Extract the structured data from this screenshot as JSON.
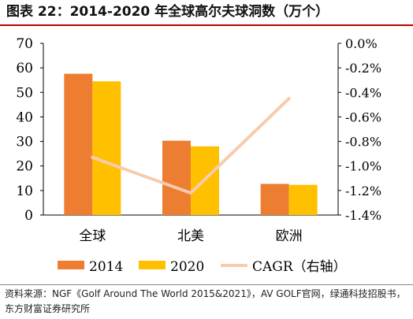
{
  "title": "图表 22：2014-2020 年全球高尔夫球洞数（万个）",
  "source": "资料来源：NGF《Golf Around The World 2015&2021》，AV GOLF官网，绿通科技招股书，东方财富证券研究所",
  "chart_data": {
    "type": "bar",
    "categories": [
      "全球",
      "北美",
      "欧洲"
    ],
    "series": [
      {
        "name": "2014",
        "type": "bar",
        "axis": "left",
        "color": "#ED7D31",
        "values": [
          57.6,
          30.3,
          12.7
        ]
      },
      {
        "name": "2020",
        "type": "bar",
        "axis": "left",
        "color": "#FFC000",
        "values": [
          54.5,
          28.0,
          12.3
        ]
      },
      {
        "name": "CAGR（右轴）",
        "type": "line",
        "axis": "right",
        "color": "#F8CBAD",
        "values": [
          -0.93,
          -1.22,
          -0.45
        ]
      }
    ],
    "y_left": {
      "min": 0,
      "max": 70,
      "step": 10,
      "ticks": [
        "0",
        "10",
        "20",
        "30",
        "40",
        "50",
        "60",
        "70"
      ]
    },
    "y_right": {
      "min": -1.4,
      "max": 0.0,
      "step": 0.2,
      "ticks": [
        "-1.4%",
        "-1.2%",
        "-1.0%",
        "-0.8%",
        "-0.6%",
        "-0.4%",
        "-0.2%",
        "0.0%"
      ]
    },
    "legend_position": "bottom",
    "grid": false
  }
}
